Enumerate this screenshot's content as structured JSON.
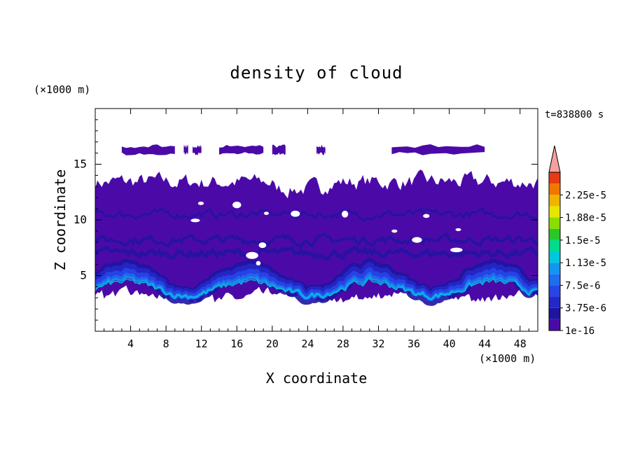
{
  "chart_data": {
    "type": "heatmap",
    "title": "density of cloud",
    "xlabel": "X coordinate",
    "ylabel": "Z coordinate",
    "x_unit": "(×1000 m)",
    "y_unit": "(×1000 m)",
    "time_label": "t=838800 s",
    "xlim": [
      0,
      50
    ],
    "ylim": [
      0,
      20
    ],
    "x_ticks": [
      4,
      8,
      12,
      16,
      20,
      24,
      28,
      32,
      36,
      40,
      44,
      48
    ],
    "y_ticks": [
      5,
      10,
      15
    ],
    "colorbar": {
      "labels": [
        "2.25e-5",
        "1.88e-5",
        "1.5e-5",
        "1.13e-5",
        "7.5e-6",
        "3.75e-6",
        "1e-16"
      ],
      "levels": [
        1e-16,
        1.875e-06,
        3.75e-06,
        5.625e-06,
        7.5e-06,
        9.375e-06,
        1.125e-05,
        1.3125e-05,
        1.5e-05,
        1.6875e-05,
        1.875e-05,
        2.0625e-05,
        2.25e-05,
        2.4375e-05
      ],
      "colors": [
        "#4b0aa8",
        "#1e14a0",
        "#2328c8",
        "#2846e6",
        "#1e6ef0",
        "#1496f0",
        "#00c8dc",
        "#00dc8c",
        "#28c828",
        "#8cdc00",
        "#e6e600",
        "#f0b400",
        "#f07800",
        "#e63c14"
      ],
      "extend_color": "#f5a0a0"
    },
    "regions": {
      "upper_cloud_layer": {
        "z_range": [
          15.8,
          16.8
        ],
        "x_segments": [
          [
            3,
            9
          ],
          [
            10,
            10.5
          ],
          [
            11,
            12
          ],
          [
            14,
            19
          ],
          [
            20,
            21.5
          ],
          [
            25,
            26
          ],
          [
            33.5,
            44
          ]
        ]
      },
      "main_cloud_layer": {
        "z_range": [
          2.2,
          13.8
        ],
        "x_range": [
          0,
          50
        ]
      },
      "enhanced_band": {
        "z_range": [
          2.8,
          6.5
        ],
        "peak_value": 7.5e-06
      }
    }
  },
  "colors": {
    "background": "#ffffff",
    "axis": "#000000",
    "cloud_base": "#4b0aa8"
  }
}
